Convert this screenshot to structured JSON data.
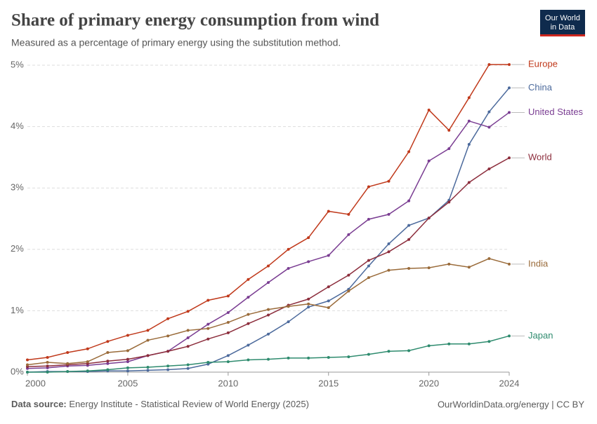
{
  "header": {
    "logo_line1": "Our World",
    "logo_line2": "in Data"
  },
  "chart_data": {
    "type": "line",
    "title": "Share of primary energy consumption from wind",
    "subtitle": "Measured as a percentage of primary energy using the substitution method.",
    "x": [
      2000,
      2001,
      2002,
      2003,
      2004,
      2005,
      2006,
      2007,
      2008,
      2009,
      2010,
      2011,
      2012,
      2013,
      2014,
      2015,
      2016,
      2017,
      2018,
      2019,
      2020,
      2021,
      2022,
      2023,
      2024
    ],
    "xlim": [
      2000,
      2024
    ],
    "xticks": [
      2000,
      2005,
      2010,
      2015,
      2020,
      2024
    ],
    "ylim": [
      0,
      5
    ],
    "yticks": [
      {
        "value": 0,
        "label": "0%"
      },
      {
        "value": 1,
        "label": "1%"
      },
      {
        "value": 2,
        "label": "2%"
      },
      {
        "value": 3,
        "label": "3%"
      },
      {
        "value": 4,
        "label": "4%"
      },
      {
        "value": 5,
        "label": "5%"
      }
    ],
    "grid": true,
    "series": [
      {
        "name": "Europe",
        "color": "#c0391b",
        "values": [
          0.2,
          0.24,
          0.32,
          0.38,
          0.5,
          0.6,
          0.68,
          0.87,
          0.99,
          1.17,
          1.24,
          1.51,
          1.73,
          2.0,
          2.19,
          2.62,
          2.57,
          3.02,
          3.11,
          3.59,
          4.27,
          3.94,
          4.47,
          5.01,
          5.01
        ]
      },
      {
        "name": "China",
        "color": "#4c6a9c",
        "values": [
          0,
          0.01,
          0.01,
          0.01,
          0.02,
          0.02,
          0.03,
          0.04,
          0.06,
          0.13,
          0.27,
          0.44,
          0.62,
          0.82,
          1.06,
          1.16,
          1.35,
          1.73,
          2.09,
          2.39,
          2.51,
          2.8,
          3.71,
          4.24,
          4.63
        ]
      },
      {
        "name": "United States",
        "color": "#7a3d92",
        "values": [
          0.06,
          0.07,
          0.1,
          0.11,
          0.14,
          0.17,
          0.27,
          0.34,
          0.56,
          0.78,
          0.97,
          1.22,
          1.46,
          1.69,
          1.8,
          1.9,
          2.24,
          2.49,
          2.57,
          2.79,
          3.44,
          3.64,
          4.09,
          3.99,
          4.23
        ]
      },
      {
        "name": "World",
        "color": "#8c2d3c",
        "values": [
          0.09,
          0.1,
          0.12,
          0.14,
          0.18,
          0.21,
          0.27,
          0.34,
          0.42,
          0.54,
          0.64,
          0.79,
          0.93,
          1.09,
          1.19,
          1.39,
          1.58,
          1.82,
          1.96,
          2.16,
          2.51,
          2.77,
          3.09,
          3.31,
          3.49
        ]
      },
      {
        "name": "India",
        "color": "#9a6b3a",
        "values": [
          0.12,
          0.16,
          0.14,
          0.17,
          0.32,
          0.35,
          0.52,
          0.59,
          0.68,
          0.71,
          0.81,
          0.94,
          1.02,
          1.07,
          1.11,
          1.05,
          1.32,
          1.54,
          1.66,
          1.69,
          1.7,
          1.76,
          1.71,
          1.85,
          1.76
        ]
      },
      {
        "name": "Japan",
        "color": "#2e8b6e",
        "values": [
          0,
          0,
          0.01,
          0.02,
          0.04,
          0.07,
          0.08,
          0.1,
          0.12,
          0.16,
          0.17,
          0.2,
          0.21,
          0.23,
          0.23,
          0.24,
          0.25,
          0.29,
          0.34,
          0.35,
          0.43,
          0.46,
          0.46,
          0.5,
          0.59
        ]
      }
    ],
    "source_label": "Data source:",
    "source": "Energy Institute - Statistical Review of World Energy (2025)",
    "credit": "OurWorldinData.org/energy | CC BY"
  }
}
